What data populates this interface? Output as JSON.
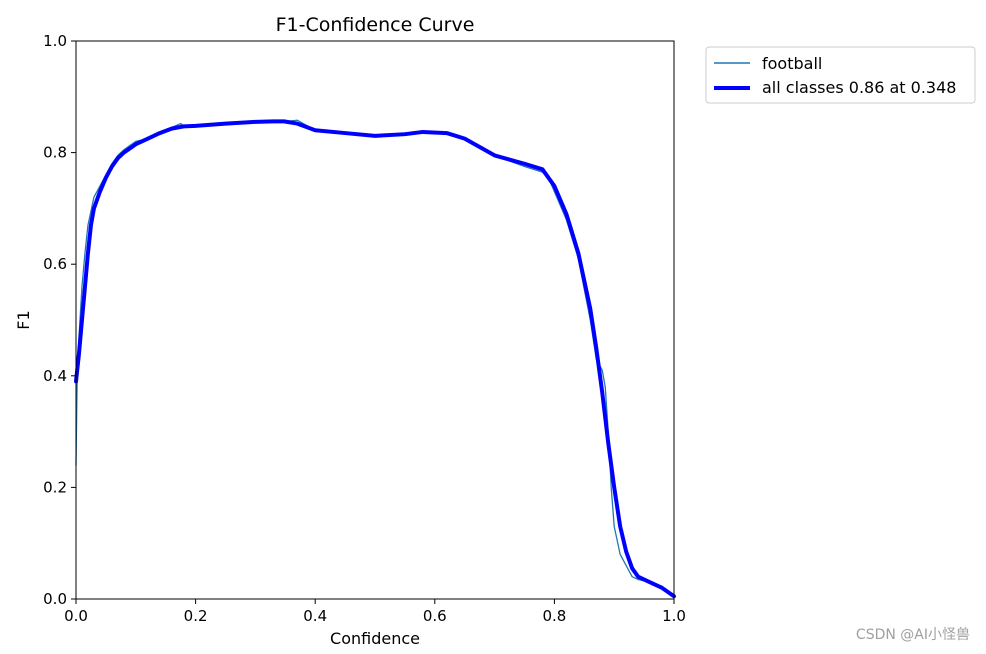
{
  "chart_data": {
    "type": "line",
    "title": "F1-Confidence Curve",
    "xlabel": "Confidence",
    "ylabel": "F1",
    "xlim": [
      0,
      1
    ],
    "ylim": [
      0,
      1
    ],
    "xticks": [
      "0.0",
      "0.2",
      "0.4",
      "0.6",
      "0.8",
      "1.0"
    ],
    "yticks": [
      "0.0",
      "0.2",
      "0.4",
      "0.6",
      "0.8",
      "1.0"
    ],
    "grid": false,
    "legend_placement": "outside-top-right",
    "series": [
      {
        "name": "football",
        "color": "#1f77b4",
        "x": [
          0.0,
          0.002,
          0.005,
          0.01,
          0.015,
          0.02,
          0.03,
          0.04,
          0.05,
          0.06,
          0.07,
          0.08,
          0.1,
          0.12,
          0.14,
          0.16,
          0.175,
          0.18,
          0.2,
          0.25,
          0.3,
          0.33,
          0.35,
          0.37,
          0.4,
          0.45,
          0.5,
          0.55,
          0.58,
          0.62,
          0.65,
          0.7,
          0.75,
          0.78,
          0.79,
          0.8,
          0.82,
          0.84,
          0.86,
          0.87,
          0.88,
          0.885,
          0.89,
          0.895,
          0.9,
          0.91,
          0.92,
          0.93,
          0.94,
          0.96,
          0.98,
          1.0
        ],
        "y": [
          0.24,
          0.4,
          0.47,
          0.56,
          0.62,
          0.67,
          0.72,
          0.74,
          0.76,
          0.78,
          0.795,
          0.805,
          0.82,
          0.825,
          0.835,
          0.845,
          0.852,
          0.848,
          0.848,
          0.852,
          0.855,
          0.854,
          0.856,
          0.858,
          0.84,
          0.835,
          0.83,
          0.835,
          0.837,
          0.833,
          0.825,
          0.795,
          0.775,
          0.765,
          0.755,
          0.73,
          0.68,
          0.61,
          0.5,
          0.43,
          0.41,
          0.38,
          0.3,
          0.2,
          0.13,
          0.08,
          0.06,
          0.04,
          0.035,
          0.03,
          0.02,
          0.005
        ]
      },
      {
        "name": "all classes 0.86 at 0.348",
        "color": "#0000ff",
        "x": [
          0.0,
          0.005,
          0.01,
          0.015,
          0.02,
          0.025,
          0.03,
          0.04,
          0.05,
          0.06,
          0.07,
          0.08,
          0.1,
          0.12,
          0.14,
          0.16,
          0.18,
          0.2,
          0.25,
          0.3,
          0.33,
          0.348,
          0.37,
          0.4,
          0.45,
          0.5,
          0.55,
          0.58,
          0.62,
          0.65,
          0.7,
          0.75,
          0.78,
          0.8,
          0.82,
          0.84,
          0.86,
          0.87,
          0.88,
          0.89,
          0.9,
          0.91,
          0.92,
          0.93,
          0.94,
          0.96,
          0.98,
          1.0
        ],
        "y": [
          0.39,
          0.44,
          0.5,
          0.56,
          0.62,
          0.67,
          0.7,
          0.73,
          0.755,
          0.775,
          0.79,
          0.8,
          0.815,
          0.825,
          0.835,
          0.843,
          0.847,
          0.848,
          0.852,
          0.855,
          0.856,
          0.856,
          0.852,
          0.84,
          0.835,
          0.83,
          0.833,
          0.837,
          0.835,
          0.825,
          0.795,
          0.78,
          0.77,
          0.74,
          0.69,
          0.62,
          0.52,
          0.45,
          0.37,
          0.28,
          0.2,
          0.13,
          0.085,
          0.055,
          0.04,
          0.03,
          0.02,
          0.005
        ]
      }
    ]
  },
  "watermark": "CSDN @AI小怪兽"
}
